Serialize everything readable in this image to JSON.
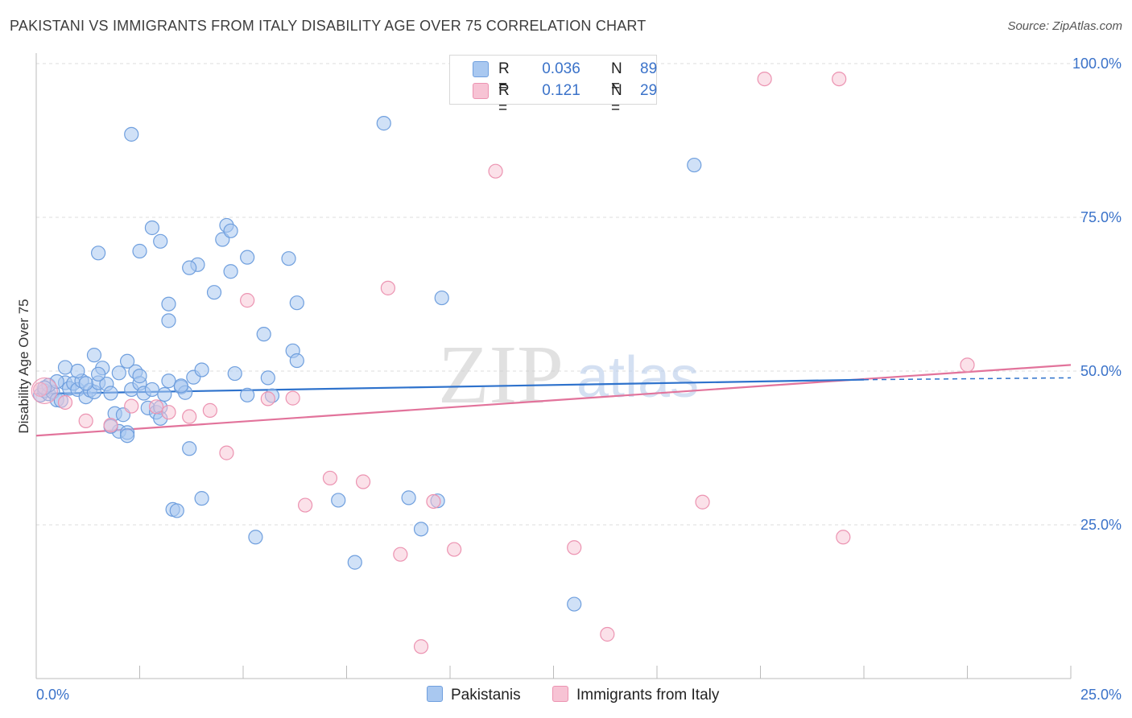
{
  "title": "PAKISTANI VS IMMIGRANTS FROM ITALY DISABILITY AGE OVER 75 CORRELATION CHART",
  "source": "Source: ZipAtlas.com",
  "watermark": {
    "zip": "ZIP",
    "atlas": "atlas"
  },
  "legend": {
    "rows": [
      {
        "r_label": "R =",
        "r_value": "0.036",
        "n_label": "N =",
        "n_value": "89"
      },
      {
        "r_label": "R =",
        "r_value": "0.121",
        "n_label": "N =",
        "n_value": "29"
      }
    ]
  },
  "bottom_legend": [
    "Pakistanis",
    "Immigrants from Italy"
  ],
  "colors": {
    "blue_fill": "#a9c8f0",
    "blue_stroke": "#6f9fde",
    "blue_line": "#2e72cc",
    "pink_fill": "#f7c3d4",
    "pink_stroke": "#ec93b1",
    "pink_line": "#e2739b",
    "tick_text": "#3a72c9",
    "grid": "#dddddd"
  },
  "chart_data": {
    "type": "scatter",
    "xlabel": "",
    "ylabel": "Disability Age Over 75",
    "xlim": [
      0,
      25
    ],
    "ylim": [
      0,
      100
    ],
    "x_tick_labels": [
      "0.0%",
      "25.0%"
    ],
    "y_ticks": [
      25,
      50,
      75,
      100
    ],
    "y_tick_labels": [
      "25.0%",
      "50.0%",
      "75.0%",
      "100.0%"
    ],
    "grid": true,
    "legend_position": "top-center",
    "series": [
      {
        "name": "Pakistanis",
        "r": 0.036,
        "n": 89,
        "trend": {
          "x": [
            0,
            20
          ],
          "y": [
            46.3,
            48.6
          ],
          "dashed_to": [
            25,
            48.9
          ]
        },
        "points": [
          [
            0.1,
            46.1
          ],
          [
            0.2,
            46.8
          ],
          [
            0.3,
            46.3
          ],
          [
            0.4,
            46.6
          ],
          [
            0.5,
            45.3
          ],
          [
            0.6,
            45.2
          ],
          [
            0.7,
            48.1
          ],
          [
            0.8,
            47.2
          ],
          [
            0.9,
            48.0
          ],
          [
            1.0,
            47.0
          ],
          [
            1.1,
            48.4
          ],
          [
            1.2,
            45.8
          ],
          [
            1.3,
            46.9
          ],
          [
            1.4,
            46.6
          ],
          [
            1.5,
            48.1
          ],
          [
            1.6,
            50.5
          ],
          [
            1.7,
            47.9
          ],
          [
            1.8,
            46.4
          ],
          [
            1.9,
            43.1
          ],
          [
            2.0,
            40.2
          ],
          [
            2.1,
            42.9
          ],
          [
            2.2,
            40.0
          ],
          [
            2.3,
            47.0
          ],
          [
            2.4,
            49.9
          ],
          [
            2.5,
            48.0
          ],
          [
            2.6,
            46.4
          ],
          [
            2.7,
            44.0
          ],
          [
            2.8,
            47.0
          ],
          [
            2.9,
            43.3
          ],
          [
            3.0,
            44.1
          ],
          [
            3.1,
            46.2
          ],
          [
            3.2,
            48.4
          ],
          [
            3.3,
            27.5
          ],
          [
            3.4,
            27.3
          ],
          [
            3.5,
            47.4
          ],
          [
            3.6,
            46.5
          ],
          [
            3.7,
            37.4
          ],
          [
            4.0,
            29.3
          ],
          [
            5.3,
            23.0
          ],
          [
            5.5,
            56.0
          ],
          [
            5.6,
            48.9
          ],
          [
            5.7,
            46.0
          ],
          [
            7.3,
            29.0
          ],
          [
            7.7,
            18.9
          ],
          [
            9.0,
            29.4
          ],
          [
            9.3,
            24.3
          ],
          [
            9.7,
            28.9
          ],
          [
            13.0,
            12.1
          ],
          [
            15.9,
            83.5
          ],
          [
            2.3,
            88.5
          ],
          [
            8.4,
            90.3
          ],
          [
            2.8,
            73.3
          ],
          [
            4.6,
            73.7
          ],
          [
            1.5,
            69.2
          ],
          [
            2.5,
            69.5
          ],
          [
            3.0,
            71.1
          ],
          [
            4.5,
            71.4
          ],
          [
            4.7,
            72.8
          ],
          [
            6.1,
            68.3
          ],
          [
            5.1,
            68.5
          ],
          [
            3.9,
            67.3
          ],
          [
            3.7,
            66.8
          ],
          [
            4.7,
            66.2
          ],
          [
            4.3,
            62.8
          ],
          [
            3.2,
            60.9
          ],
          [
            3.2,
            58.2
          ],
          [
            6.3,
            61.1
          ],
          [
            9.8,
            61.9
          ],
          [
            6.2,
            53.3
          ],
          [
            6.3,
            51.7
          ],
          [
            2.5,
            49.2
          ],
          [
            3.8,
            49.0
          ],
          [
            1.5,
            49.5
          ],
          [
            4.0,
            50.2
          ],
          [
            1.0,
            50.0
          ],
          [
            1.4,
            52.6
          ],
          [
            2.2,
            51.6
          ],
          [
            4.8,
            49.6
          ],
          [
            5.1,
            46.1
          ],
          [
            0.7,
            50.6
          ],
          [
            1.2,
            48.0
          ],
          [
            0.3,
            47.7
          ],
          [
            0.2,
            47.3
          ],
          [
            2.0,
            49.7
          ],
          [
            1.8,
            41.0
          ],
          [
            3.0,
            42.3
          ],
          [
            3.5,
            47.6
          ],
          [
            2.2,
            39.5
          ],
          [
            0.5,
            48.3
          ]
        ]
      },
      {
        "name": "Immigrants from Italy",
        "r": 0.121,
        "n": 29,
        "trend": {
          "x": [
            0,
            25
          ],
          "y": [
            39.5,
            51.0
          ]
        },
        "points": [
          [
            0.1,
            47.0
          ],
          [
            0.7,
            44.9
          ],
          [
            1.2,
            41.9
          ],
          [
            1.8,
            41.2
          ],
          [
            2.3,
            44.3
          ],
          [
            2.9,
            44.2
          ],
          [
            3.2,
            43.3
          ],
          [
            3.7,
            42.6
          ],
          [
            4.2,
            43.6
          ],
          [
            4.6,
            36.7
          ],
          [
            5.1,
            61.5
          ],
          [
            5.6,
            45.5
          ],
          [
            6.2,
            45.6
          ],
          [
            6.5,
            28.2
          ],
          [
            7.1,
            32.6
          ],
          [
            7.9,
            32.0
          ],
          [
            8.5,
            63.5
          ],
          [
            8.8,
            20.2
          ],
          [
            9.3,
            5.2
          ],
          [
            9.6,
            28.8
          ],
          [
            10.1,
            21.0
          ],
          [
            11.1,
            82.5
          ],
          [
            13.0,
            21.3
          ],
          [
            13.8,
            7.2
          ],
          [
            16.1,
            28.7
          ],
          [
            17.6,
            97.5
          ],
          [
            19.4,
            97.5
          ],
          [
            19.5,
            23.0
          ],
          [
            22.5,
            51.0
          ]
        ]
      }
    ]
  }
}
